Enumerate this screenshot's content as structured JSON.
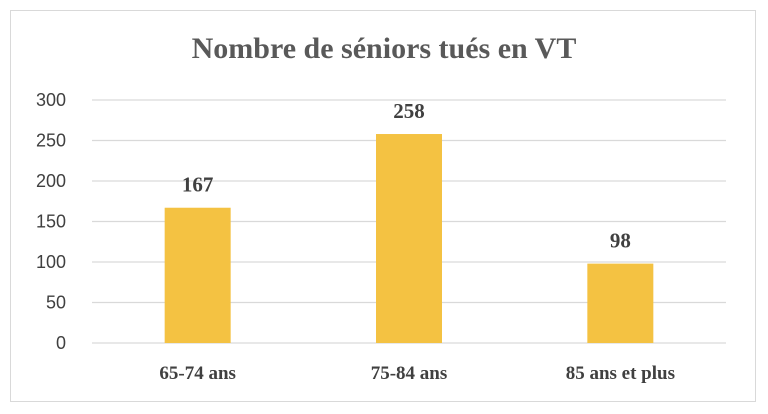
{
  "chart_data": {
    "type": "bar",
    "title": "Nombre de séniors tués en VT",
    "categories": [
      "65-74 ans",
      "75-84 ans",
      "85 ans et plus"
    ],
    "values": [
      167,
      258,
      98
    ],
    "data_labels": [
      "167",
      "258",
      "98"
    ],
    "xlabel": "",
    "ylabel": "",
    "ylim": [
      0,
      300
    ],
    "yticks": [
      0,
      50,
      100,
      150,
      200,
      250,
      300
    ],
    "ytick_labels": [
      "0",
      "50",
      "100",
      "150",
      "200",
      "250",
      "300"
    ],
    "grid": true,
    "legend": "none",
    "bar_color": "#F4C242",
    "grid_color": "#d9d9d9"
  }
}
